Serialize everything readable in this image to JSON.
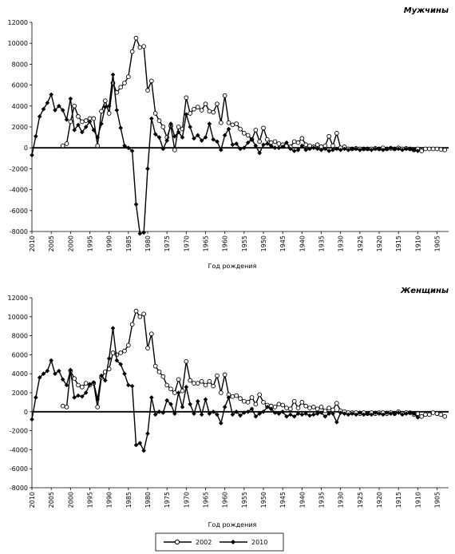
{
  "chart_data": [
    {
      "type": "line",
      "title": "Мужчины",
      "x_label": "Год рождения",
      "x": [
        2010,
        2009,
        2008,
        2007,
        2006,
        2005,
        2004,
        2003,
        2002,
        2001,
        2000,
        1999,
        1998,
        1997,
        1996,
        1995,
        1994,
        1993,
        1992,
        1991,
        1990,
        1989,
        1988,
        1987,
        1986,
        1985,
        1984,
        1983,
        1982,
        1981,
        1980,
        1979,
        1978,
        1977,
        1976,
        1975,
        1974,
        1973,
        1972,
        1971,
        1970,
        1969,
        1968,
        1967,
        1966,
        1965,
        1964,
        1963,
        1962,
        1961,
        1960,
        1959,
        1958,
        1957,
        1956,
        1955,
        1954,
        1953,
        1952,
        1951,
        1950,
        1949,
        1948,
        1947,
        1946,
        1945,
        1944,
        1943,
        1942,
        1941,
        1940,
        1939,
        1938,
        1937,
        1936,
        1935,
        1934,
        1933,
        1932,
        1931,
        1930,
        1929,
        1928,
        1927,
        1926,
        1925,
        1924,
        1923,
        1922,
        1921,
        1920,
        1919,
        1918,
        1917,
        1916,
        1915,
        1914,
        1913,
        1912,
        1911,
        1910,
        1909,
        1908,
        1907,
        1906,
        1905,
        1904,
        1903
      ],
      "xlim": [
        2010,
        1902
      ],
      "xticks": [
        2010,
        2005,
        2000,
        1995,
        1990,
        1985,
        1980,
        1975,
        1970,
        1965,
        1960,
        1955,
        1950,
        1945,
        1940,
        1935,
        1930,
        1925,
        1920,
        1915,
        1910,
        1905
      ],
      "ylim": [
        -8000,
        12000
      ],
      "yticks": [
        -8000,
        -6000,
        -4000,
        -2000,
        0,
        2000,
        4000,
        6000,
        8000,
        10000,
        12000
      ],
      "series": [
        {
          "name": "2002",
          "color": "#000000",
          "marker": "circle",
          "values": [
            null,
            null,
            null,
            null,
            null,
            null,
            null,
            null,
            200,
            400,
            2500,
            4000,
            3000,
            2500,
            2600,
            2800,
            2800,
            200,
            3500,
            4500,
            3300,
            6200,
            5300,
            5800,
            6200,
            6800,
            9200,
            10500,
            9600,
            9700,
            5500,
            6400,
            3300,
            2600,
            2000,
            1000,
            2100,
            -200,
            2000,
            1800,
            4800,
            3300,
            3700,
            3900,
            3600,
            4200,
            3500,
            3400,
            4200,
            2400,
            5000,
            2400,
            2200,
            2300,
            1800,
            1400,
            1200,
            800,
            1700,
            600,
            1900,
            800,
            500,
            600,
            400,
            300,
            200,
            100,
            600,
            500,
            900,
            300,
            200,
            100,
            300,
            100,
            200,
            1100,
            200,
            1400,
            0,
            100,
            -100,
            -100,
            -50,
            -100,
            -100,
            -100,
            -100,
            -50,
            -100,
            0,
            -100,
            -50,
            -100,
            0,
            -100,
            -50,
            -100,
            -200,
            -100,
            -300,
            -100,
            -100,
            -100,
            -100,
            -150,
            -200
          ]
        },
        {
          "name": "2010",
          "color": "#000000",
          "marker": "diamond",
          "values": [
            -700,
            1100,
            3000,
            3700,
            4300,
            5100,
            3600,
            4000,
            3600,
            2700,
            4700,
            1700,
            2200,
            1500,
            2000,
            2500,
            1700,
            1000,
            2300,
            3900,
            4000,
            7000,
            3600,
            1900,
            200,
            0,
            -300,
            -5400,
            -8200,
            -8100,
            -2000,
            2800,
            1300,
            1000,
            -100,
            700,
            2300,
            1100,
            1500,
            1000,
            3200,
            2000,
            900,
            1200,
            700,
            1000,
            2300,
            800,
            600,
            -200,
            1200,
            1800,
            300,
            400,
            -100,
            0,
            500,
            800,
            200,
            -500,
            300,
            400,
            200,
            0,
            0,
            100,
            500,
            -100,
            -300,
            -200,
            200,
            -200,
            -100,
            0,
            -100,
            -200,
            -100,
            -300,
            -200,
            -100,
            -200,
            -100,
            -200,
            -100,
            -100,
            -200,
            -100,
            -100,
            -200,
            -100,
            -100,
            -200,
            -100,
            0,
            -100,
            -100,
            -200,
            -100,
            -100,
            -200,
            -300,
            null,
            null,
            null,
            null,
            null,
            null,
            null
          ]
        }
      ]
    },
    {
      "type": "line",
      "title": "Женщины",
      "x_label": "Год рождения",
      "x": [
        2010,
        2009,
        2008,
        2007,
        2006,
        2005,
        2004,
        2003,
        2002,
        2001,
        2000,
        1999,
        1998,
        1997,
        1996,
        1995,
        1994,
        1993,
        1992,
        1991,
        1990,
        1989,
        1988,
        1987,
        1986,
        1985,
        1984,
        1983,
        1982,
        1981,
        1980,
        1979,
        1978,
        1977,
        1976,
        1975,
        1974,
        1973,
        1972,
        1971,
        1970,
        1969,
        1968,
        1967,
        1966,
        1965,
        1964,
        1963,
        1962,
        1961,
        1960,
        1959,
        1958,
        1957,
        1956,
        1955,
        1954,
        1953,
        1952,
        1951,
        1950,
        1949,
        1948,
        1947,
        1946,
        1945,
        1944,
        1943,
        1942,
        1941,
        1940,
        1939,
        1938,
        1937,
        1936,
        1935,
        1934,
        1933,
        1932,
        1931,
        1930,
        1929,
        1928,
        1927,
        1926,
        1925,
        1924,
        1923,
        1922,
        1921,
        1920,
        1919,
        1918,
        1917,
        1916,
        1915,
        1914,
        1913,
        1912,
        1911,
        1910,
        1909,
        1908,
        1907,
        1906,
        1905,
        1904,
        1903
      ],
      "xlim": [
        2010,
        1902
      ],
      "xticks": [
        2010,
        2005,
        2000,
        1995,
        1990,
        1985,
        1980,
        1975,
        1970,
        1965,
        1960,
        1955,
        1950,
        1945,
        1940,
        1935,
        1930,
        1925,
        1920,
        1915,
        1910,
        1905
      ],
      "ylim": [
        -8000,
        12000
      ],
      "yticks": [
        -8000,
        -6000,
        -4000,
        -2000,
        0,
        2000,
        4000,
        6000,
        8000,
        10000,
        12000
      ],
      "series": [
        {
          "name": "2002",
          "color": "#000000",
          "marker": "circle",
          "values": [
            null,
            null,
            null,
            null,
            null,
            null,
            null,
            null,
            600,
            500,
            4300,
            3500,
            2800,
            2600,
            3000,
            2800,
            3000,
            500,
            3600,
            4200,
            4500,
            6200,
            6000,
            6200,
            6400,
            7000,
            9200,
            10600,
            10000,
            10300,
            6700,
            8200,
            4800,
            4200,
            3700,
            2800,
            2400,
            2000,
            3400,
            2200,
            5300,
            3300,
            3000,
            3000,
            3200,
            2800,
            3200,
            2700,
            3800,
            2000,
            3900,
            1800,
            1600,
            1700,
            1400,
            1100,
            1000,
            1500,
            800,
            1800,
            1000,
            700,
            600,
            500,
            800,
            700,
            400,
            300,
            1100,
            400,
            1000,
            600,
            400,
            500,
            300,
            500,
            100,
            400,
            200,
            900,
            100,
            0,
            -100,
            -100,
            -100,
            -200,
            -100,
            -200,
            -100,
            -200,
            -100,
            -100,
            -200,
            -100,
            -200,
            0,
            -200,
            -100,
            -100,
            -300,
            -200,
            -500,
            -300,
            -300,
            -100,
            -200,
            -300,
            -500
          ]
        },
        {
          "name": "2010",
          "color": "#000000",
          "marker": "diamond",
          "values": [
            -800,
            1500,
            3600,
            4000,
            4300,
            5400,
            4000,
            4300,
            3400,
            2800,
            4400,
            1500,
            1700,
            1600,
            2000,
            2900,
            3100,
            1300,
            3800,
            3300,
            5600,
            8800,
            5400,
            5000,
            4000,
            2800,
            2700,
            -3500,
            -3300,
            -4100,
            -2300,
            1500,
            -300,
            0,
            -100,
            1200,
            800,
            -200,
            2000,
            500,
            2600,
            800,
            -200,
            1100,
            -300,
            1300,
            -200,
            0,
            -300,
            -1200,
            500,
            1500,
            -300,
            0,
            -400,
            -100,
            0,
            300,
            -500,
            -200,
            0,
            500,
            300,
            -100,
            -200,
            0,
            -500,
            -300,
            -500,
            -200,
            -300,
            -200,
            -400,
            -300,
            -200,
            -100,
            -500,
            -200,
            -200,
            -1100,
            -100,
            -200,
            -300,
            -200,
            -300,
            -100,
            -300,
            -200,
            -300,
            -100,
            -200,
            -300,
            -100,
            -200,
            -200,
            -100,
            -300,
            -200,
            -100,
            -200,
            -600,
            null,
            null,
            null,
            null,
            null,
            null,
            null
          ]
        }
      ]
    }
  ]
}
